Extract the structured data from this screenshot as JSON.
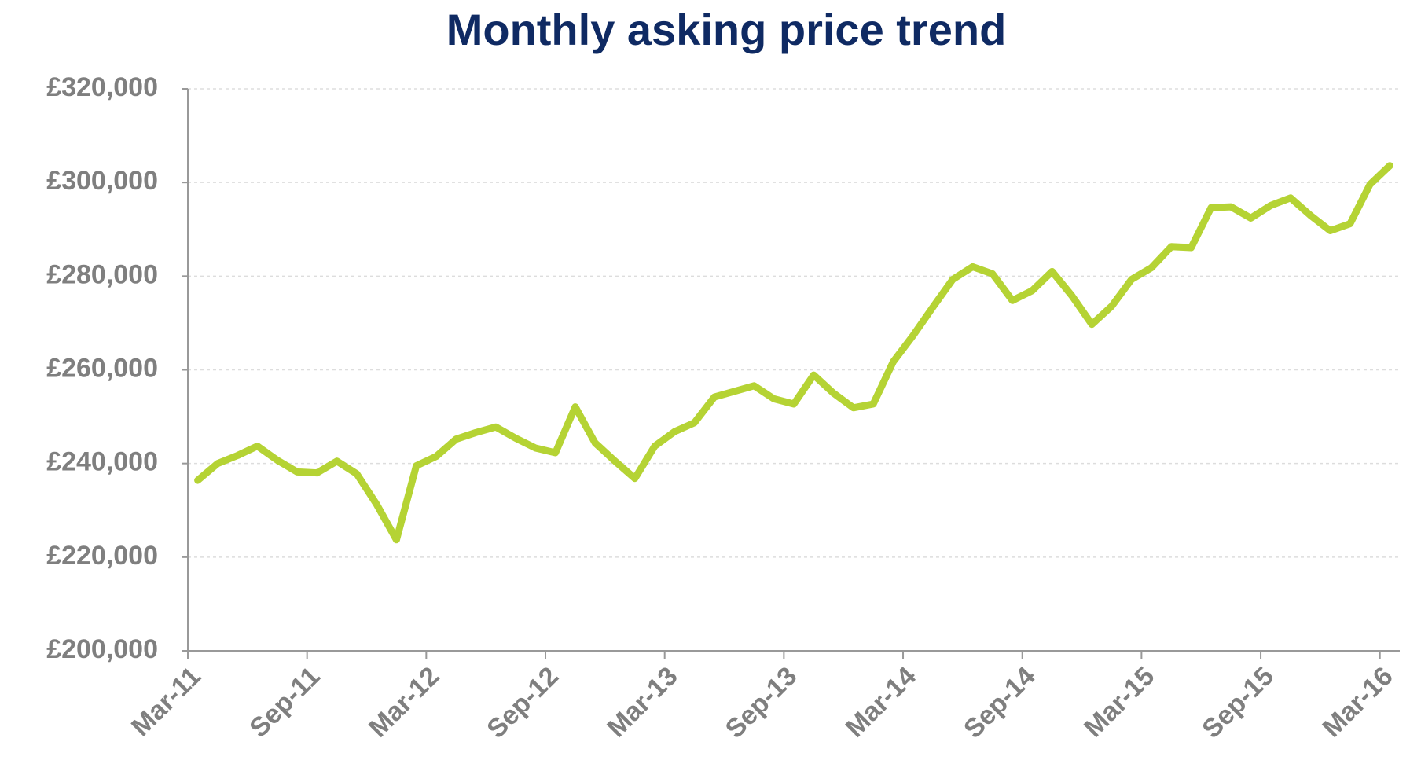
{
  "chart_data": {
    "type": "line",
    "title": "Monthly asking price trend",
    "categories": [
      "Mar-11",
      null,
      null,
      null,
      null,
      null,
      "Sep-11",
      null,
      null,
      null,
      null,
      null,
      "Mar-12",
      null,
      null,
      null,
      null,
      null,
      "Sep-12",
      null,
      null,
      null,
      null,
      null,
      "Mar-13",
      null,
      null,
      null,
      null,
      null,
      "Sep-13",
      null,
      null,
      null,
      null,
      null,
      "Mar-14",
      null,
      null,
      null,
      null,
      null,
      "Sep-14",
      null,
      null,
      null,
      null,
      null,
      "Mar-15",
      null,
      null,
      null,
      null,
      null,
      "Sep-15",
      null,
      null,
      null,
      null,
      null,
      "Mar-16"
    ],
    "series": [
      {
        "name": "Asking price",
        "color": "#b5d334",
        "values": [
          236400,
          240000,
          241700,
          243700,
          240700,
          238200,
          238000,
          240500,
          237800,
          231300,
          223700,
          239500,
          241500,
          245200,
          246600,
          247800,
          245400,
          243300,
          242300,
          252100,
          244400,
          240500,
          236800,
          243700,
          246800,
          248700,
          254200,
          255400,
          256600,
          253800,
          252700,
          258900,
          255000,
          251900,
          252700,
          261700,
          267300,
          273400,
          279300,
          282000,
          280500,
          274800,
          276900,
          281000,
          275800,
          269700,
          273600,
          279300,
          281800,
          286300,
          286100,
          294600,
          294800,
          292400,
          295100,
          296700,
          293000,
          289700,
          291200,
          299600,
          303600
        ]
      }
    ],
    "ylim": [
      200000,
      320000
    ],
    "yticks": [
      {
        "value": 200000,
        "label": "£200,000"
      },
      {
        "value": 220000,
        "label": "£220,000"
      },
      {
        "value": 240000,
        "label": "£240,000"
      },
      {
        "value": 260000,
        "label": "£260,000"
      },
      {
        "value": 280000,
        "label": "£280,000"
      },
      {
        "value": 300000,
        "label": "£300,000"
      },
      {
        "value": 320000,
        "label": "£320,000"
      }
    ],
    "grid": true
  }
}
